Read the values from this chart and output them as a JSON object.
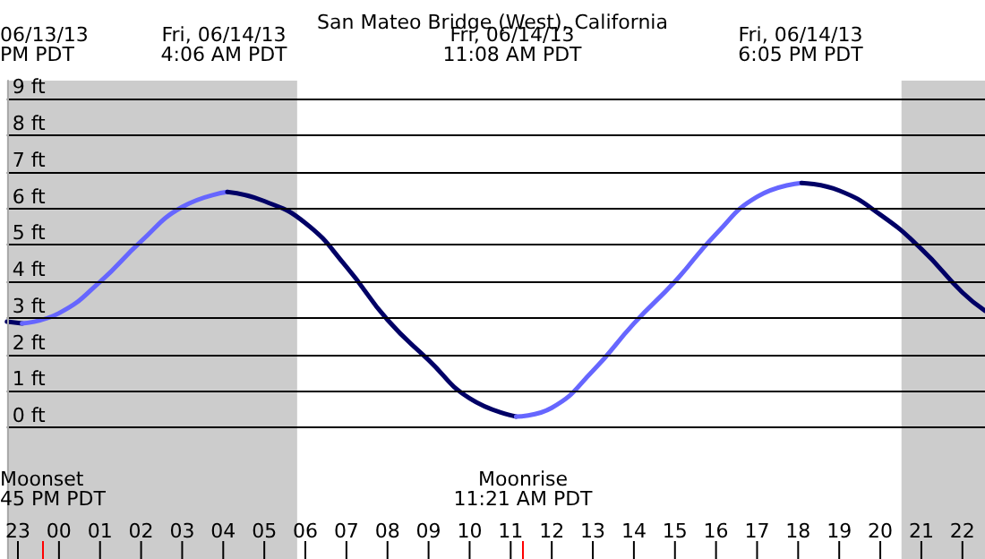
{
  "chart_data": {
    "type": "line",
    "title": "San Mateo Bridge (West), California",
    "xlim": [
      "--06-13T22:44",
      "--06-14T22:33"
    ],
    "xticks": [
      {
        "value": "--06-13T23:00",
        "label": "23"
      },
      {
        "value": "--06-14T00:00",
        "label": "00"
      },
      {
        "value": "--06-14T01:00",
        "label": "01"
      },
      {
        "value": "--06-14T02:00",
        "label": "02"
      },
      {
        "value": "--06-14T03:00",
        "label": "03"
      },
      {
        "value": "--06-14T04:00",
        "label": "04"
      },
      {
        "value": "--06-14T05:00",
        "label": "05"
      },
      {
        "value": "--06-14T06:00",
        "label": "06"
      },
      {
        "value": "--06-14T07:00",
        "label": "07"
      },
      {
        "value": "--06-14T08:00",
        "label": "08"
      },
      {
        "value": "--06-14T09:00",
        "label": "09"
      },
      {
        "value": "--06-14T10:00",
        "label": "10"
      },
      {
        "value": "--06-14T11:00",
        "label": "11"
      },
      {
        "value": "--06-14T12:00",
        "label": "12"
      },
      {
        "value": "--06-14T13:00",
        "label": "13"
      },
      {
        "value": "--06-14T14:00",
        "label": "14"
      },
      {
        "value": "--06-14T15:00",
        "label": "15"
      },
      {
        "value": "--06-14T16:00",
        "label": "16"
      },
      {
        "value": "--06-14T17:00",
        "label": "17"
      },
      {
        "value": "--06-14T18:00",
        "label": "18"
      },
      {
        "value": "--06-14T19:00",
        "label": "19"
      },
      {
        "value": "--06-14T20:00",
        "label": "20"
      },
      {
        "value": "--06-14T21:00",
        "label": "21"
      },
      {
        "value": "--06-14T22:00",
        "label": "22"
      }
    ],
    "ylim": [
      -3.6,
      9.5
    ],
    "yticks": [
      {
        "value": 0,
        "label": "0 ft"
      },
      {
        "value": 1,
        "label": "1 ft"
      },
      {
        "value": 2,
        "label": "2 ft"
      },
      {
        "value": 3,
        "label": "3 ft"
      },
      {
        "value": 4,
        "label": "4 ft"
      },
      {
        "value": 5,
        "label": "5 ft"
      },
      {
        "value": 6,
        "label": "6 ft"
      },
      {
        "value": 7,
        "label": "7 ft"
      },
      {
        "value": 8,
        "label": "8 ft"
      },
      {
        "value": 9,
        "label": "9 ft"
      }
    ],
    "grid": "y",
    "marker": "none",
    "line_style": "solid",
    "series": [
      {
        "color": "#000066",
        "x": [
          "--06-13T22:44",
          "--06-13T23:06"
        ],
        "values": [
          2.9,
          2.85
        ]
      },
      {
        "color": "#6666ff",
        "x": [
          "--06-13T23:06",
          "--06-14T00:00",
          "--06-14T01:00",
          "--06-14T02:00",
          "--06-14T03:00",
          "--06-14T04:06"
        ],
        "values": [
          2.85,
          3.13,
          3.99,
          5.1,
          6.04,
          6.45
        ]
      },
      {
        "color": "#000066",
        "x": [
          "--06-14T04:06",
          "--06-14T05:00",
          "--06-14T06:00",
          "--06-14T07:00",
          "--06-14T08:00",
          "--06-14T09:00",
          "--06-14T10:00",
          "--06-14T11:08"
        ],
        "values": [
          6.45,
          6.2,
          5.6,
          4.4,
          2.95,
          1.85,
          0.8,
          0.3
        ]
      },
      {
        "color": "#6666ff",
        "x": [
          "--06-14T11:08",
          "--06-14T12:00",
          "--06-14T13:00",
          "--06-14T14:00",
          "--06-14T15:00",
          "--06-14T16:00",
          "--06-14T17:00",
          "--06-14T18:05"
        ],
        "values": [
          0.3,
          0.54,
          1.55,
          2.85,
          4.0,
          5.3,
          6.32,
          6.7
        ]
      },
      {
        "color": "#000066",
        "x": [
          "--06-14T18:05",
          "--06-14T19:00",
          "--06-14T20:00",
          "--06-14T21:00",
          "--06-14T22:00",
          "--06-14T22:33"
        ],
        "values": [
          6.7,
          6.49,
          5.83,
          4.89,
          3.7,
          3.2
        ]
      }
    ],
    "bands": [
      {
        "axis": "x",
        "from": "--06-13T22:44",
        "to": "--06-14T05:48",
        "color": "#cccccc"
      },
      {
        "axis": "x",
        "from": "--06-14T20:31",
        "to": "--06-14T22:33",
        "color": "#cccccc"
      }
    ],
    "annotations": [
      "06/13/13\nPM PDT",
      "Fri, 06/14/13\n4:06 AM PDT",
      "Fri, 06/14/13\n11:08 AM PDT",
      "Fri, 06/14/13\n6:05 PM PDT",
      "Moonset\n45 PM PDT",
      "Moonrise\n11:21 AM PDT"
    ]
  }
}
